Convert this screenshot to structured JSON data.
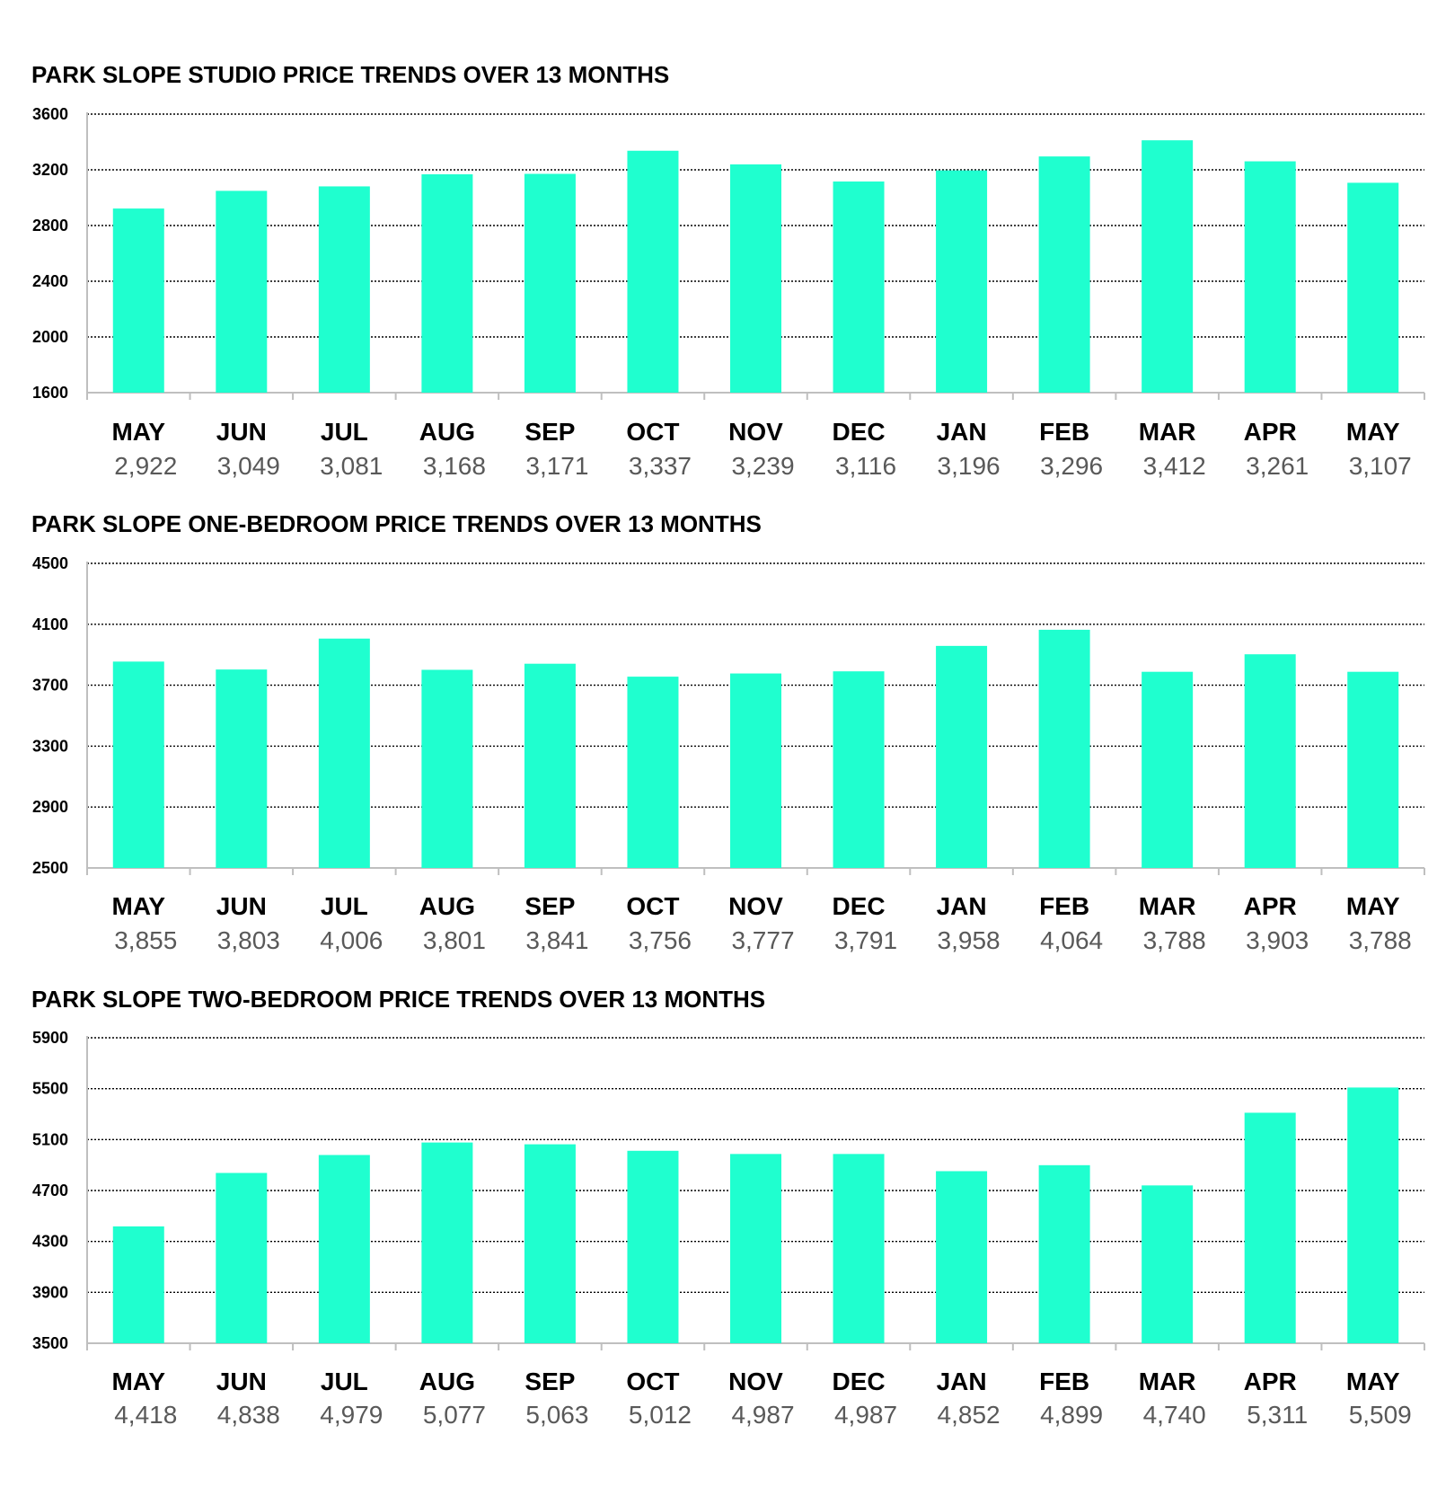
{
  "colors": {
    "bar": "#1fffcf",
    "grid": "#000000",
    "axis": "#bfbfbf",
    "value_text": "#595959"
  },
  "chart_data": [
    {
      "type": "bar",
      "title": "PARK SLOPE STUDIO PRICE TRENDS OVER 13 MONTHS",
      "categories": [
        "MAY",
        "JUN",
        "JUL",
        "AUG",
        "SEP",
        "OCT",
        "NOV",
        "DEC",
        "JAN",
        "FEB",
        "MAR",
        "APR",
        "MAY"
      ],
      "values": [
        2922,
        3049,
        3081,
        3168,
        3171,
        3337,
        3239,
        3116,
        3196,
        3296,
        3412,
        3261,
        3107
      ],
      "value_labels": [
        "2,922",
        "3,049",
        "3,081",
        "3,168",
        "3,171",
        "3,337",
        "3,239",
        "3,116",
        "3,196",
        "3,296",
        "3,412",
        "3,261",
        "3,107"
      ],
      "yticks": [
        1600,
        2000,
        2400,
        2800,
        3200,
        3600
      ],
      "ylim": [
        1600,
        3600
      ],
      "grid": true
    },
    {
      "type": "bar",
      "title": "PARK SLOPE ONE-BEDROOM PRICE TRENDS OVER 13 MONTHS",
      "categories": [
        "MAY",
        "JUN",
        "JUL",
        "AUG",
        "SEP",
        "OCT",
        "NOV",
        "DEC",
        "JAN",
        "FEB",
        "MAR",
        "APR",
        "MAY"
      ],
      "values": [
        3855,
        3803,
        4006,
        3801,
        3841,
        3756,
        3777,
        3791,
        3958,
        4064,
        3788,
        3903,
        3788
      ],
      "value_labels": [
        "3,855",
        "3,803",
        "4,006",
        "3,801",
        "3,841",
        "3,756",
        "3,777",
        "3,791",
        "3,958",
        "4,064",
        "3,788",
        "3,903",
        "3,788"
      ],
      "yticks": [
        2500,
        2900,
        3300,
        3700,
        4100,
        4500
      ],
      "ylim": [
        2500,
        4500
      ],
      "grid": true
    },
    {
      "type": "bar",
      "title": "PARK SLOPE TWO-BEDROOM PRICE TRENDS OVER 13 MONTHS",
      "categories": [
        "MAY",
        "JUN",
        "JUL",
        "AUG",
        "SEP",
        "OCT",
        "NOV",
        "DEC",
        "JAN",
        "FEB",
        "MAR",
        "APR",
        "MAY"
      ],
      "values": [
        4418,
        4838,
        4979,
        5077,
        5063,
        5012,
        4987,
        4987,
        4852,
        4899,
        4740,
        5311,
        5509
      ],
      "value_labels": [
        "4,418",
        "4,838",
        "4,979",
        "5,077",
        "5,063",
        "5,012",
        "4,987",
        "4,987",
        "4,852",
        "4,899",
        "4,740",
        "5,311",
        "5,509"
      ],
      "yticks": [
        3500,
        3900,
        4300,
        4700,
        5100,
        5500,
        5900
      ],
      "ylim": [
        3500,
        5900
      ],
      "grid": true
    }
  ]
}
